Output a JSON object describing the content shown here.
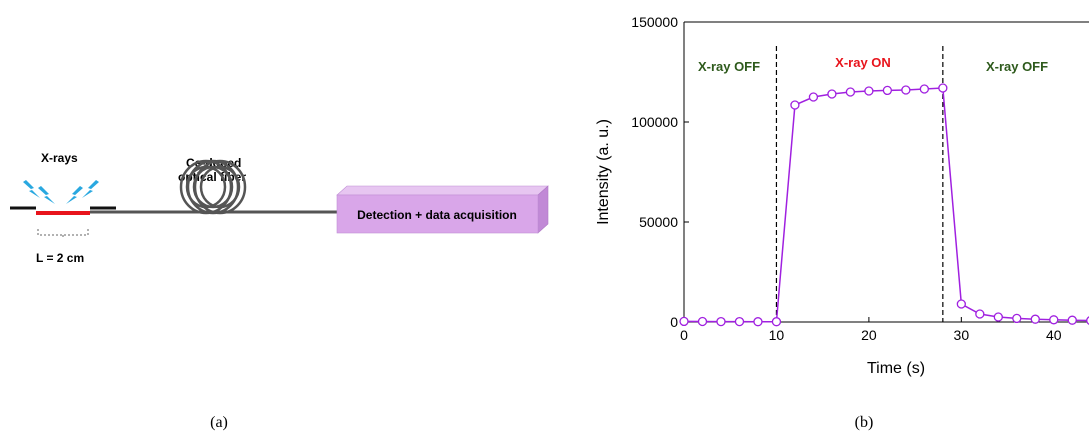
{
  "panel_a": {
    "xrays_label": "X-rays",
    "fiber_label_line1": "Ce-doped",
    "fiber_label_line2": "optical fiber",
    "length_label": "L = 2 cm",
    "detector_label": "Detection + data acquisition",
    "caption": "(a)",
    "colors": {
      "xray_bolt": "#29a8e0",
      "irradiated_segment": "#e8141c",
      "fiber": "#555555",
      "detector_front": "#d9a6e9",
      "detector_top": "#e7c6f1",
      "detector_side": "#c189d6"
    },
    "icons": [
      "lightning-bolt-icon",
      "fiber-coil-icon"
    ]
  },
  "panel_b": {
    "caption": "(b)",
    "annotations": [
      {
        "text": "X-ray OFF",
        "color": "#2e5a1c"
      },
      {
        "text": "X-ray ON",
        "color": "#e8141c"
      },
      {
        "text": "X-ray OFF",
        "color": "#2e5a1c"
      }
    ]
  },
  "chart_data": {
    "type": "line",
    "xlabel": "Time (s)",
    "ylabel": "Intensity (a. u.)",
    "xlim": [
      0,
      45
    ],
    "ylim": [
      0,
      150000
    ],
    "x_ticks": [
      0,
      10,
      20,
      30,
      40
    ],
    "y_ticks": [
      0,
      50000,
      100000,
      150000
    ],
    "vlines": [
      10,
      28
    ],
    "marker": "open-circle",
    "color": "#a020e0",
    "series": [
      {
        "x": [
          0,
          2,
          4,
          6,
          8,
          10,
          12,
          14,
          16,
          18,
          20,
          22,
          24,
          26,
          28,
          30,
          32,
          34,
          36,
          38,
          40,
          42,
          44
        ],
        "values": [
          300,
          250,
          200,
          200,
          150,
          150,
          108500,
          112500,
          114000,
          115000,
          115500,
          115800,
          116000,
          116500,
          117000,
          9000,
          4000,
          2500,
          1800,
          1400,
          1100,
          900,
          700
        ]
      }
    ]
  }
}
